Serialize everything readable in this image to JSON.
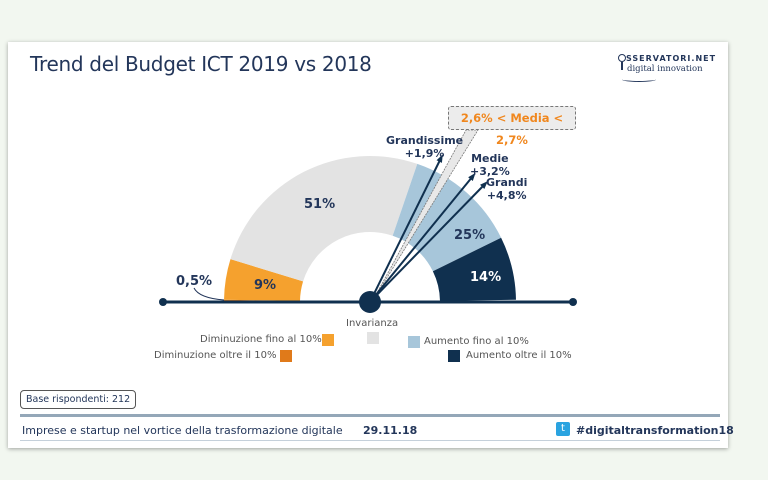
{
  "slide": {
    "title": "Trend del Budget ICT 2019 vs 2018",
    "logo_line1": "SSERVATORI.NET",
    "logo_line2": "digital innovation",
    "base": "Base rispondenti: 212",
    "footer_text": "Imprese e startup nel vortice della trasformazione digitale",
    "footer_date": "29.11.18",
    "footer_hashtag": "#digitaltransformation18"
  },
  "chart_data": {
    "type": "gauge",
    "title": "Trend del Budget ICT 2019 vs 2018",
    "segments": [
      {
        "name": "Diminuzione oltre il 10%",
        "value": 0.5,
        "label": "0,5%",
        "color": "#e07a1a"
      },
      {
        "name": "Diminuzione fino al 10%",
        "value": 9,
        "label": "9%",
        "color": "#f5a12e"
      },
      {
        "name": "Invarianza",
        "value": 51,
        "label": "51%",
        "color": "#e3e3e3"
      },
      {
        "name": "Aumento fino al 10%",
        "value": 25,
        "label": "25%",
        "color": "#a7c6da"
      },
      {
        "name": "Aumento oltre il 10%",
        "value": 14,
        "label": "14%",
        "color": "#10304f"
      }
    ],
    "pointers": [
      {
        "name": "Grandissime",
        "value": "+1,9%"
      },
      {
        "name": "Medie",
        "value": "+3,2%"
      },
      {
        "name": "Grandi",
        "value": "+4,8%"
      }
    ],
    "media_annotation": "2,6% < Media < 2,7%",
    "legend": [
      "Diminuzione fino al 10%",
      "Invarianza",
      "Aumento fino al 10%",
      "Diminuzione oltre il 10%",
      "Aumento oltre il 10%"
    ]
  },
  "colors": {
    "navy": "#23365a",
    "background": "#f2f7f0",
    "accent_orange": "#f0871e"
  }
}
